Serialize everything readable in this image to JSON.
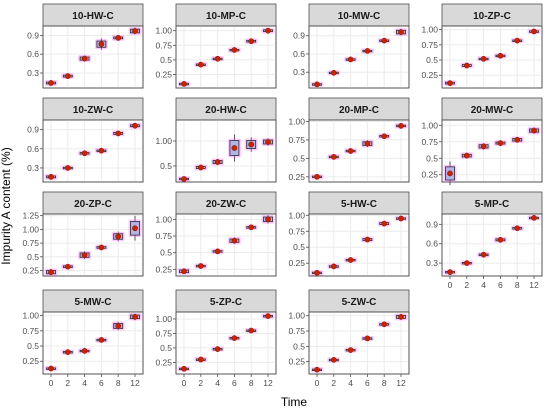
{
  "figure": {
    "xlabel": "Time",
    "ylabel": "Impurity A content (%)"
  },
  "colors": {
    "strip": "#d9d9d9",
    "strip_border": "#4d4d4d",
    "panel_border": "#4d4d4d",
    "grid": "#ebebeb",
    "box_fill": "#b3b3e6",
    "box_stroke": "#2b2b2b",
    "point_fill": "#cc2200",
    "halo": "#ff66ff",
    "mean_marker": "#33aa33",
    "axis_text": "#4d4d4d"
  },
  "chart_data": [
    {
      "type": "box",
      "title": "10-HW-C",
      "x": [
        0,
        2,
        4,
        6,
        8,
        12
      ],
      "y": [
        0.14,
        0.25,
        0.53,
        0.76,
        0.86,
        0.97
      ],
      "yticks": [
        0.3,
        0.6,
        0.9
      ],
      "ylim": [
        0.06,
        1.05
      ],
      "box_height": [
        0.03,
        0.03,
        0.05,
        0.1,
        0.03,
        0.06
      ],
      "xlabels_visible": false
    },
    {
      "type": "box",
      "title": "10-MP-C",
      "x": [
        0,
        2,
        4,
        6,
        8,
        12
      ],
      "y": [
        0.09,
        0.42,
        0.52,
        0.67,
        0.82,
        1.0
      ],
      "yticks": [
        0.25,
        0.5,
        0.75,
        1.0
      ],
      "ylim": [
        0.02,
        1.08
      ],
      "box_height": [
        0.02,
        0.02,
        0.02,
        0.02,
        0.03,
        0.03
      ],
      "xlabels_visible": false
    },
    {
      "type": "box",
      "title": "10-MW-C",
      "x": [
        0,
        2,
        4,
        6,
        8,
        12
      ],
      "y": [
        0.1,
        0.29,
        0.51,
        0.65,
        0.82,
        0.96
      ],
      "yticks": [
        0.3,
        0.6,
        0.9
      ],
      "ylim": [
        0.04,
        1.06
      ],
      "box_height": [
        0.02,
        0.02,
        0.02,
        0.02,
        0.02,
        0.06
      ],
      "xlabels_visible": false
    },
    {
      "type": "box",
      "title": "10-ZP-C",
      "x": [
        0,
        2,
        4,
        6,
        8,
        12
      ],
      "y": [
        0.12,
        0.41,
        0.52,
        0.57,
        0.82,
        0.97
      ],
      "yticks": [
        0.25,
        0.5,
        0.75,
        1.0
      ],
      "ylim": [
        0.04,
        1.06
      ],
      "box_height": [
        0.03,
        0.03,
        0.02,
        0.02,
        0.02,
        0.02
      ],
      "xlabels_visible": false
    },
    {
      "type": "box",
      "title": "10-ZW-C",
      "x": [
        0,
        2,
        4,
        6,
        8,
        12
      ],
      "y": [
        0.16,
        0.3,
        0.53,
        0.57,
        0.84,
        0.96
      ],
      "yticks": [
        0.3,
        0.6,
        0.9
      ],
      "ylim": [
        0.08,
        1.05
      ],
      "box_height": [
        0.03,
        0.02,
        0.02,
        0.02,
        0.03,
        0.03
      ],
      "xlabels_visible": false
    },
    {
      "type": "box",
      "title": "20-HW-C",
      "x": [
        0,
        2,
        4,
        6,
        8,
        12
      ],
      "y": [
        0.24,
        0.47,
        0.58,
        0.86,
        0.93,
        0.98
      ],
      "yticks": [
        0.5,
        1.0
      ],
      "ylim": [
        0.18,
        1.42
      ],
      "box_height": [
        0.03,
        0.04,
        0.06,
        0.3,
        0.16,
        0.08
      ],
      "xlabels_visible": false
    },
    {
      "type": "box",
      "title": "20-MP-C",
      "x": [
        0,
        2,
        4,
        6,
        8,
        12
      ],
      "y": [
        0.25,
        0.52,
        0.6,
        0.7,
        0.8,
        0.94
      ],
      "yticks": [
        0.25,
        0.5,
        0.75,
        1.0
      ],
      "ylim": [
        0.18,
        1.02
      ],
      "box_height": [
        0.02,
        0.02,
        0.02,
        0.05,
        0.02,
        0.02
      ],
      "xlabels_visible": false
    },
    {
      "type": "box",
      "title": "20-MW-C",
      "x": [
        0,
        2,
        4,
        6,
        8,
        12
      ],
      "y": [
        0.27,
        0.54,
        0.68,
        0.73,
        0.78,
        0.92
      ],
      "yticks": [
        0.25,
        0.5,
        0.75,
        1.0
      ],
      "ylim": [
        0.14,
        1.08
      ],
      "box_height": [
        0.2,
        0.04,
        0.05,
        0.03,
        0.04,
        0.05
      ],
      "xlabels_visible": false
    },
    {
      "type": "box",
      "title": "20-ZP-C",
      "x": [
        0,
        2,
        4,
        6,
        8,
        12
      ],
      "y": [
        0.22,
        0.32,
        0.53,
        0.67,
        0.87,
        1.02
      ],
      "yticks": [
        0.25,
        0.5,
        0.75,
        1.0,
        1.25
      ],
      "ylim": [
        0.15,
        1.28
      ],
      "box_height": [
        0.06,
        0.03,
        0.08,
        0.03,
        0.1,
        0.25
      ],
      "xlabels_visible": false
    },
    {
      "type": "box",
      "title": "20-ZW-C",
      "x": [
        0,
        2,
        4,
        6,
        8,
        12
      ],
      "y": [
        0.22,
        0.3,
        0.52,
        0.68,
        0.88,
        1.0
      ],
      "yticks": [
        0.25,
        0.5,
        0.75,
        1.0
      ],
      "ylim": [
        0.15,
        1.08
      ],
      "box_height": [
        0.04,
        0.02,
        0.02,
        0.05,
        0.02,
        0.07
      ],
      "xlabels_visible": false
    },
    {
      "type": "box",
      "title": "5-HW-C",
      "x": [
        0,
        2,
        4,
        6,
        8,
        12
      ],
      "y": [
        0.1,
        0.2,
        0.3,
        0.62,
        0.87,
        0.95
      ],
      "yticks": [
        0.25,
        0.5,
        0.75,
        1.0
      ],
      "ylim": [
        0.05,
        1.02
      ],
      "box_height": [
        0.02,
        0.02,
        0.02,
        0.03,
        0.03,
        0.02
      ],
      "xlabels_visible": false
    },
    {
      "type": "box",
      "title": "5-MP-C",
      "x": [
        0,
        2,
        4,
        6,
        8,
        12
      ],
      "y": [
        0.16,
        0.3,
        0.43,
        0.66,
        0.84,
        1.0
      ],
      "yticks": [
        0.3,
        0.6,
        0.9
      ],
      "ylim": [
        0.1,
        1.06
      ],
      "box_height": [
        0.02,
        0.02,
        0.02,
        0.03,
        0.02,
        0.02
      ],
      "xlabels": [
        "0",
        "2",
        "4",
        "6",
        "8",
        "12"
      ]
    },
    {
      "type": "box",
      "title": "5-MW-C",
      "x": [
        0,
        2,
        4,
        6,
        8,
        12
      ],
      "y": [
        0.13,
        0.4,
        0.42,
        0.6,
        0.83,
        0.98
      ],
      "yticks": [
        0.25,
        0.5,
        0.75,
        1.0
      ],
      "ylim": [
        0.04,
        1.06
      ],
      "box_height": [
        0.02,
        0.02,
        0.02,
        0.02,
        0.08,
        0.06
      ],
      "xlabels": [
        "0",
        "2",
        "4",
        "6",
        "8",
        "12"
      ]
    },
    {
      "type": "box",
      "title": "5-ZP-C",
      "x": [
        0,
        2,
        4,
        6,
        8,
        12
      ],
      "y": [
        0.14,
        0.3,
        0.48,
        0.67,
        0.8,
        1.05
      ],
      "yticks": [
        0.25,
        0.5,
        0.75,
        1.0
      ],
      "ylim": [
        0.05,
        1.12
      ],
      "box_height": [
        0.02,
        0.02,
        0.02,
        0.02,
        0.02,
        0.02
      ],
      "xlabels": [
        "0",
        "2",
        "4",
        "6",
        "8",
        "12"
      ]
    },
    {
      "type": "box",
      "title": "5-ZW-C",
      "x": [
        0,
        2,
        4,
        6,
        8,
        12
      ],
      "y": [
        0.12,
        0.28,
        0.44,
        0.63,
        0.86,
        0.98
      ],
      "yticks": [
        0.25,
        0.5,
        0.75,
        1.0
      ],
      "ylim": [
        0.05,
        1.06
      ],
      "box_height": [
        0.02,
        0.02,
        0.02,
        0.02,
        0.02,
        0.05
      ],
      "xlabels": [
        "0",
        "2",
        "4",
        "6",
        "8",
        "12"
      ]
    }
  ]
}
